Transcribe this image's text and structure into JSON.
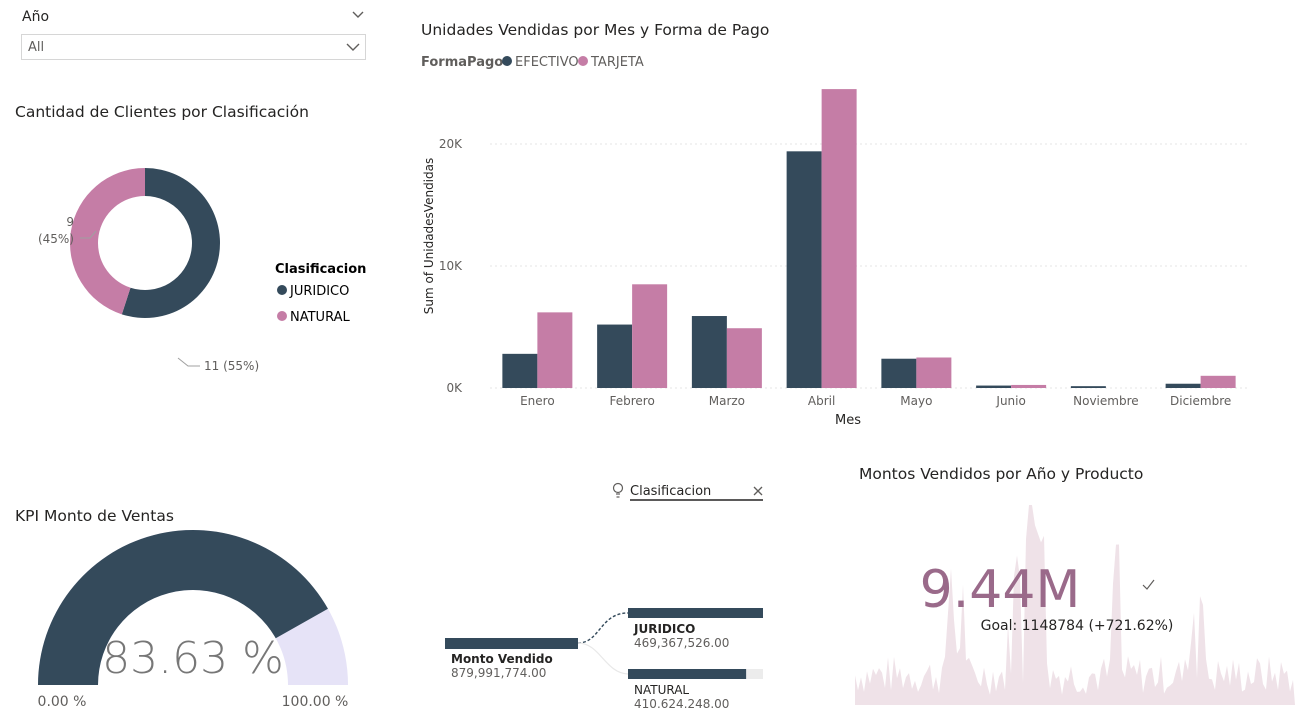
{
  "slicer": {
    "title": "Año",
    "value": "All"
  },
  "donut": {
    "title": "Cantidad de Clientes por Clasificación",
    "legend_title": "Clasificacion",
    "slices": [
      {
        "name": "JURIDICO",
        "value": 11,
        "label": "11 (55%)",
        "color": "#344A5B"
      },
      {
        "name": "NATURAL",
        "value": 9,
        "label_value": "9",
        "label_pct": "(45%)",
        "color": "#C57DA6"
      }
    ]
  },
  "chart_data": {
    "type": "bar",
    "title": "Unidades Vendidas por Mes y Forma de Pago",
    "legend_title": "FormaPago",
    "xlabel": "Mes",
    "ylabel": "Sum of UnidadesVendidas",
    "yticks": [
      "0K",
      "10K",
      "20K"
    ],
    "ylim": [
      0,
      25000
    ],
    "grid": true,
    "legend_position": "top-left",
    "categories": [
      "Enero",
      "Febrero",
      "Marzo",
      "Abril",
      "Mayo",
      "Junio",
      "Noviembre",
      "Diciembre"
    ],
    "series": [
      {
        "name": "EFECTIVO",
        "color": "#344A5B",
        "values": [
          2800,
          5200,
          5900,
          19400,
          2400,
          200,
          150,
          350
        ]
      },
      {
        "name": "TARJETA",
        "color": "#C57DA6",
        "values": [
          6200,
          8500,
          4900,
          24500,
          2500,
          250,
          0,
          1000
        ]
      }
    ]
  },
  "kpi": {
    "title": "KPI Monto de Ventas",
    "value_text": "83.63 %",
    "value_fraction": 0.8363,
    "min_label": "0.00 %",
    "max_label": "100.00 %",
    "fill_color": "#344A5B",
    "track_color": "#E6E3F7"
  },
  "decomp": {
    "filter_label": "Clasificacion",
    "root": {
      "label": "Monto Vendido",
      "value": "879,991,774.00"
    },
    "children": [
      {
        "label": "JURIDICO",
        "value": "469,367,526.00",
        "fraction": 1.0
      },
      {
        "label": "NATURAL",
        "value": "410,624,248.00",
        "fraction": 0.875
      }
    ]
  },
  "card": {
    "title": "Montos Vendidos por Año y Producto",
    "value": "9.44M",
    "goal": "Goal: 1148784 (+721.62%)",
    "value_color": "#9A6A8A",
    "trend_color": "#EFE2E8"
  }
}
